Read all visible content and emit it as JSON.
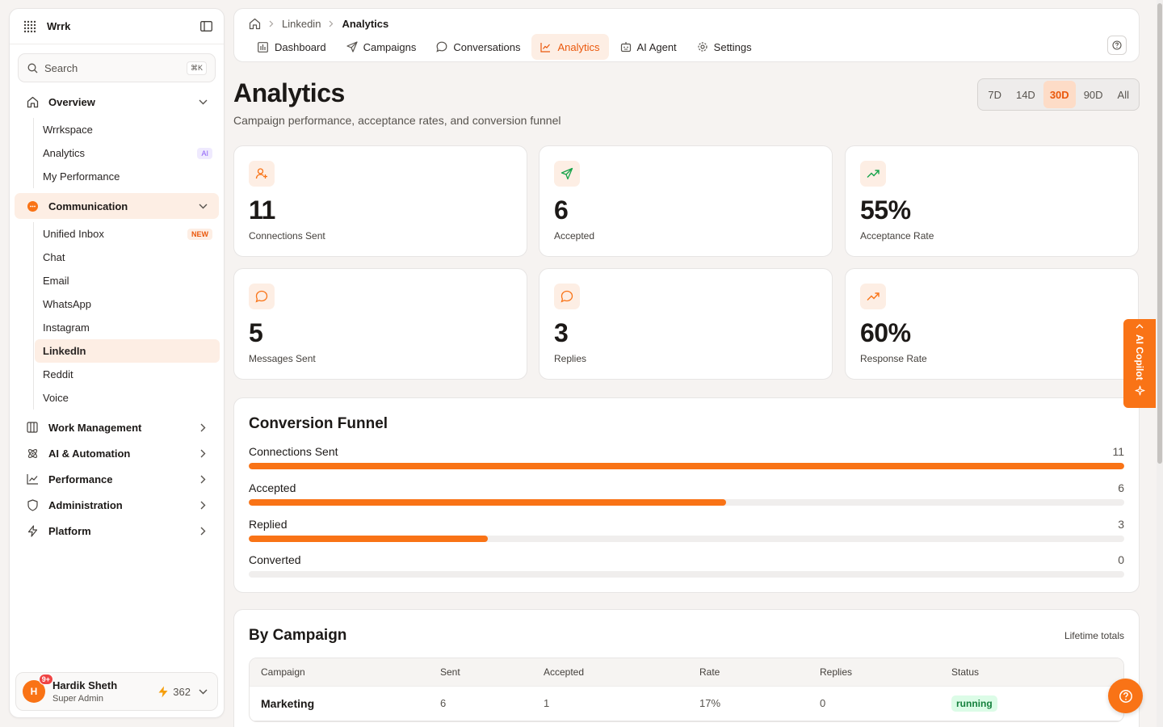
{
  "app": {
    "brand": "Wrrk"
  },
  "search": {
    "placeholder": "Search",
    "shortcut": "⌘K"
  },
  "sidebar": {
    "overview": {
      "label": "Overview",
      "items": [
        {
          "label": "Wrrkspace",
          "badge": ""
        },
        {
          "label": "Analytics",
          "badge": "AI"
        },
        {
          "label": "My Performance",
          "badge": ""
        }
      ]
    },
    "communication": {
      "label": "Communication",
      "items": [
        {
          "label": "Unified Inbox",
          "badge": "NEW"
        },
        {
          "label": "Chat"
        },
        {
          "label": "Email"
        },
        {
          "label": "WhatsApp"
        },
        {
          "label": "Instagram"
        },
        {
          "label": "LinkedIn"
        },
        {
          "label": "Reddit"
        },
        {
          "label": "Voice"
        }
      ]
    },
    "groups": [
      {
        "label": "Work Management"
      },
      {
        "label": "AI & Automation"
      },
      {
        "label": "Performance"
      },
      {
        "label": "Administration"
      },
      {
        "label": "Platform"
      }
    ]
  },
  "user": {
    "initial": "H",
    "notifications": "9+",
    "name": "Hardik Sheth",
    "role": "Super Admin",
    "credits": "362"
  },
  "breadcrumb": {
    "parent": "Linkedin",
    "current": "Analytics"
  },
  "tabs": [
    {
      "label": "Dashboard",
      "icon": "dashboard-icon"
    },
    {
      "label": "Campaigns",
      "icon": "send-icon"
    },
    {
      "label": "Conversations",
      "icon": "chat-icon"
    },
    {
      "label": "Analytics",
      "icon": "chart-icon"
    },
    {
      "label": "AI Agent",
      "icon": "robot-icon"
    },
    {
      "label": "Settings",
      "icon": "gear-icon"
    }
  ],
  "page": {
    "title": "Analytics",
    "subtitle": "Campaign performance, acceptance rates, and conversion funnel",
    "ranges": [
      "7D",
      "14D",
      "30D",
      "90D",
      "All"
    ],
    "active_range": "30D"
  },
  "stats": [
    {
      "value": "11",
      "label": "Connections Sent",
      "icon": "user-plus-icon"
    },
    {
      "value": "6",
      "label": "Accepted",
      "icon": "send-icon"
    },
    {
      "value": "55%",
      "label": "Acceptance Rate",
      "icon": "trending-up-icon"
    },
    {
      "value": "5",
      "label": "Messages Sent",
      "icon": "chat-bubble-icon"
    },
    {
      "value": "3",
      "label": "Replies",
      "icon": "chat-bubble-icon"
    },
    {
      "value": "60%",
      "label": "Response Rate",
      "icon": "trending-up-icon"
    }
  ],
  "funnel": {
    "title": "Conversion Funnel",
    "max": 11,
    "rows": [
      {
        "label": "Connections Sent",
        "value": "11"
      },
      {
        "label": "Accepted",
        "value": "6"
      },
      {
        "label": "Replied",
        "value": "3"
      },
      {
        "label": "Converted",
        "value": "0"
      }
    ]
  },
  "campaigns": {
    "title": "By Campaign",
    "note": "Lifetime totals",
    "columns": [
      "Campaign",
      "Sent",
      "Accepted",
      "Rate",
      "Replies",
      "Status"
    ],
    "rows": [
      {
        "name": "Marketing",
        "sent": "6",
        "accepted": "1",
        "rate": "17%",
        "replies": "0",
        "status": "running"
      }
    ]
  },
  "copilot": {
    "label": "AI Copilot"
  },
  "colors": {
    "accent": "#f97316",
    "accent_soft": "#fdeee4",
    "success": "#15803d"
  }
}
